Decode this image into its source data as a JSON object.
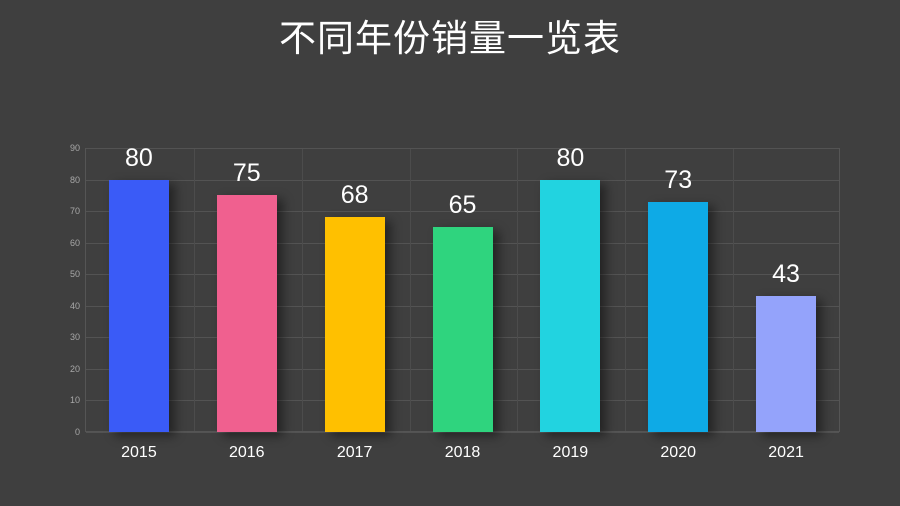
{
  "title": "不同年份销量一览表",
  "chart_data": {
    "type": "bar",
    "title": "不同年份销量一览表",
    "xlabel": "",
    "ylabel": "",
    "categories": [
      "2015",
      "2016",
      "2017",
      "2018",
      "2019",
      "2020",
      "2021"
    ],
    "values": [
      80,
      75,
      68,
      65,
      80,
      73,
      43
    ],
    "colors": [
      "#3a5bf7",
      "#f0608f",
      "#ffc000",
      "#2fd47e",
      "#22d3e0",
      "#0eaae6",
      "#94a3fb"
    ],
    "data_labels": [
      "80",
      "75",
      "68",
      "65",
      "80",
      "73",
      "43"
    ],
    "ylim": [
      0,
      90
    ],
    "yticks": [
      "0",
      "10",
      "20",
      "30",
      "40",
      "50",
      "60",
      "70",
      "80",
      "90"
    ],
    "grid": true,
    "legend": "none"
  }
}
